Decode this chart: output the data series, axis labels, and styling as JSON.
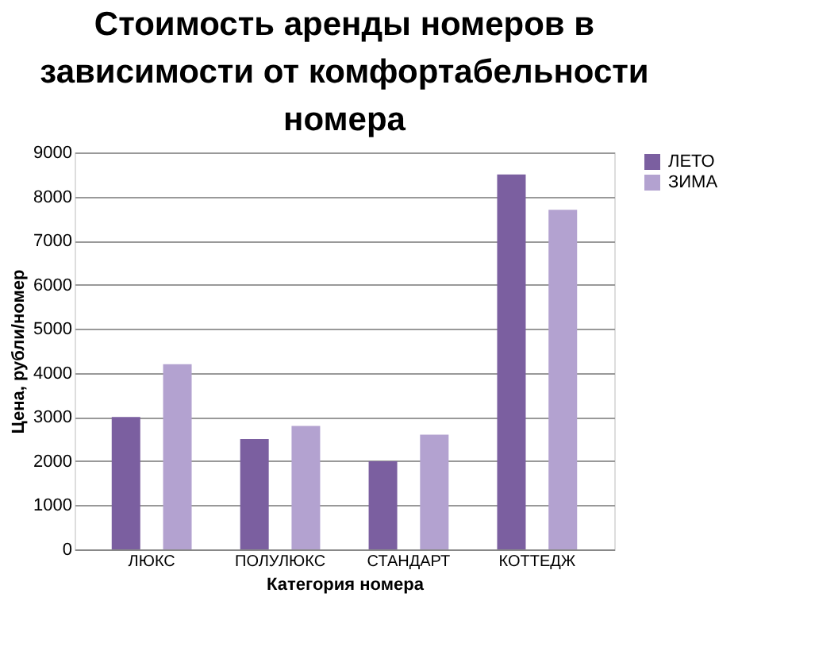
{
  "chart_data": {
    "type": "bar",
    "title": "Стоимость аренды номеров в зависимости от комфортабельности номера",
    "xlabel": "Категория номера",
    "ylabel": "Цена, рубли/номер",
    "categories": [
      "ЛЮКС",
      "ПОЛУЛЮКС",
      "СТАНДАРТ",
      "КОТТЕДЖ"
    ],
    "series": [
      {
        "name": "ЛЕТО",
        "color": "#7b5fa0",
        "values": [
          3000,
          2500,
          2000,
          8500
        ]
      },
      {
        "name": "ЗИМА",
        "color": "#b3a2d0",
        "values": [
          4200,
          2800,
          2600,
          7700
        ]
      }
    ],
    "ylim": [
      0,
      9000
    ],
    "yticks": [
      0,
      1000,
      2000,
      3000,
      4000,
      5000,
      6000,
      7000,
      8000,
      9000
    ],
    "grid": "y",
    "legend": "right"
  }
}
